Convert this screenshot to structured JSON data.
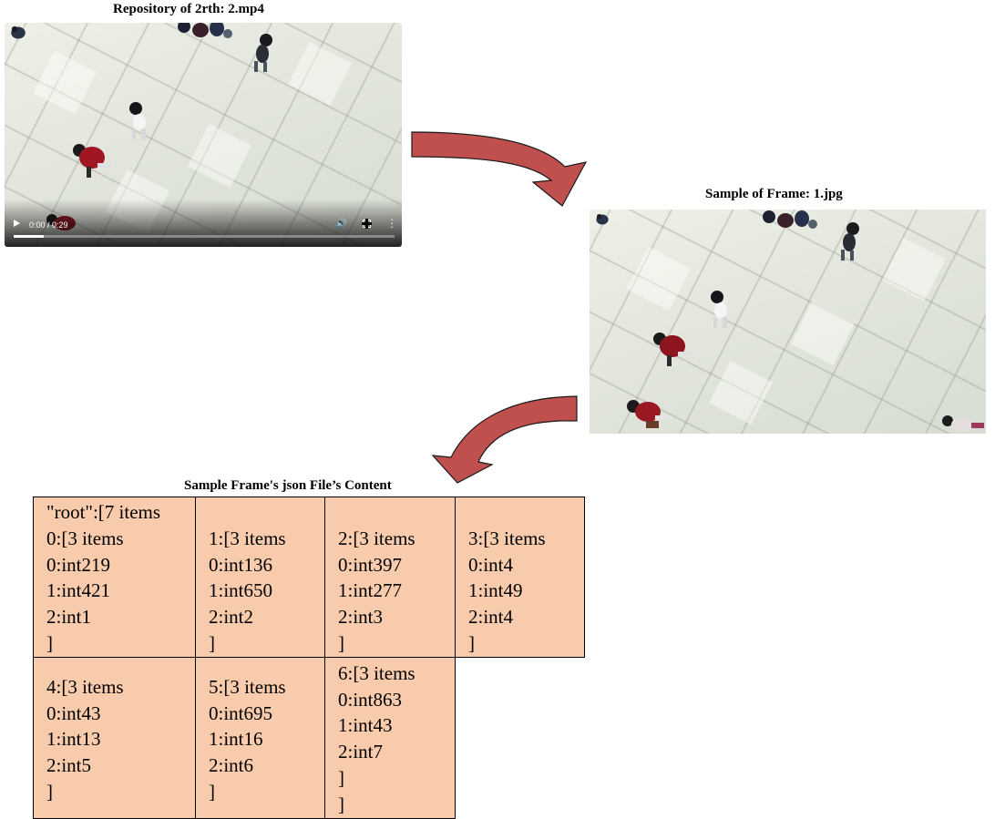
{
  "video": {
    "caption": "Repository of 2rth: 2.mp4",
    "time": "0:00 / 0:29",
    "progress": 0.08
  },
  "frame": {
    "caption": "Sample of Frame: 1.jpg"
  },
  "json_table": {
    "caption": "Sample Frame's json File’s Content",
    "rows": [
      [
        {
          "lines": [
            "\"root\":[7 items",
            "0:[3 items",
            "0:int219",
            "1:int421",
            "2:int1",
            "]"
          ]
        },
        {
          "lines": [
            "",
            "1:[3 items",
            "0:int136",
            "1:int650",
            "2:int2",
            "]"
          ]
        },
        {
          "lines": [
            "",
            "2:[3 items",
            "0:int397",
            "1:int277",
            "2:int3",
            "]"
          ]
        },
        {
          "lines": [
            "",
            "3:[3 items",
            "0:int4",
            "1:int49",
            "2:int4",
            "]"
          ]
        }
      ],
      [
        {
          "lines": [
            "4:[3 items",
            "0:int43",
            "1:int13",
            "2:int5",
            "]"
          ]
        },
        {
          "lines": [
            "5:[3 items",
            "0:int695",
            "1:int16",
            "2:int6",
            "]"
          ]
        },
        {
          "lines": [
            "6:[3 items",
            "0:int863",
            "1:int43",
            "2:int7",
            "]",
            "]"
          ]
        }
      ]
    ]
  },
  "colors": {
    "arrow_fill": "#c0504d",
    "arrow_stroke": "#1a1a1a",
    "table_fill": "#f7cbac",
    "floor": "#e4e7df"
  }
}
